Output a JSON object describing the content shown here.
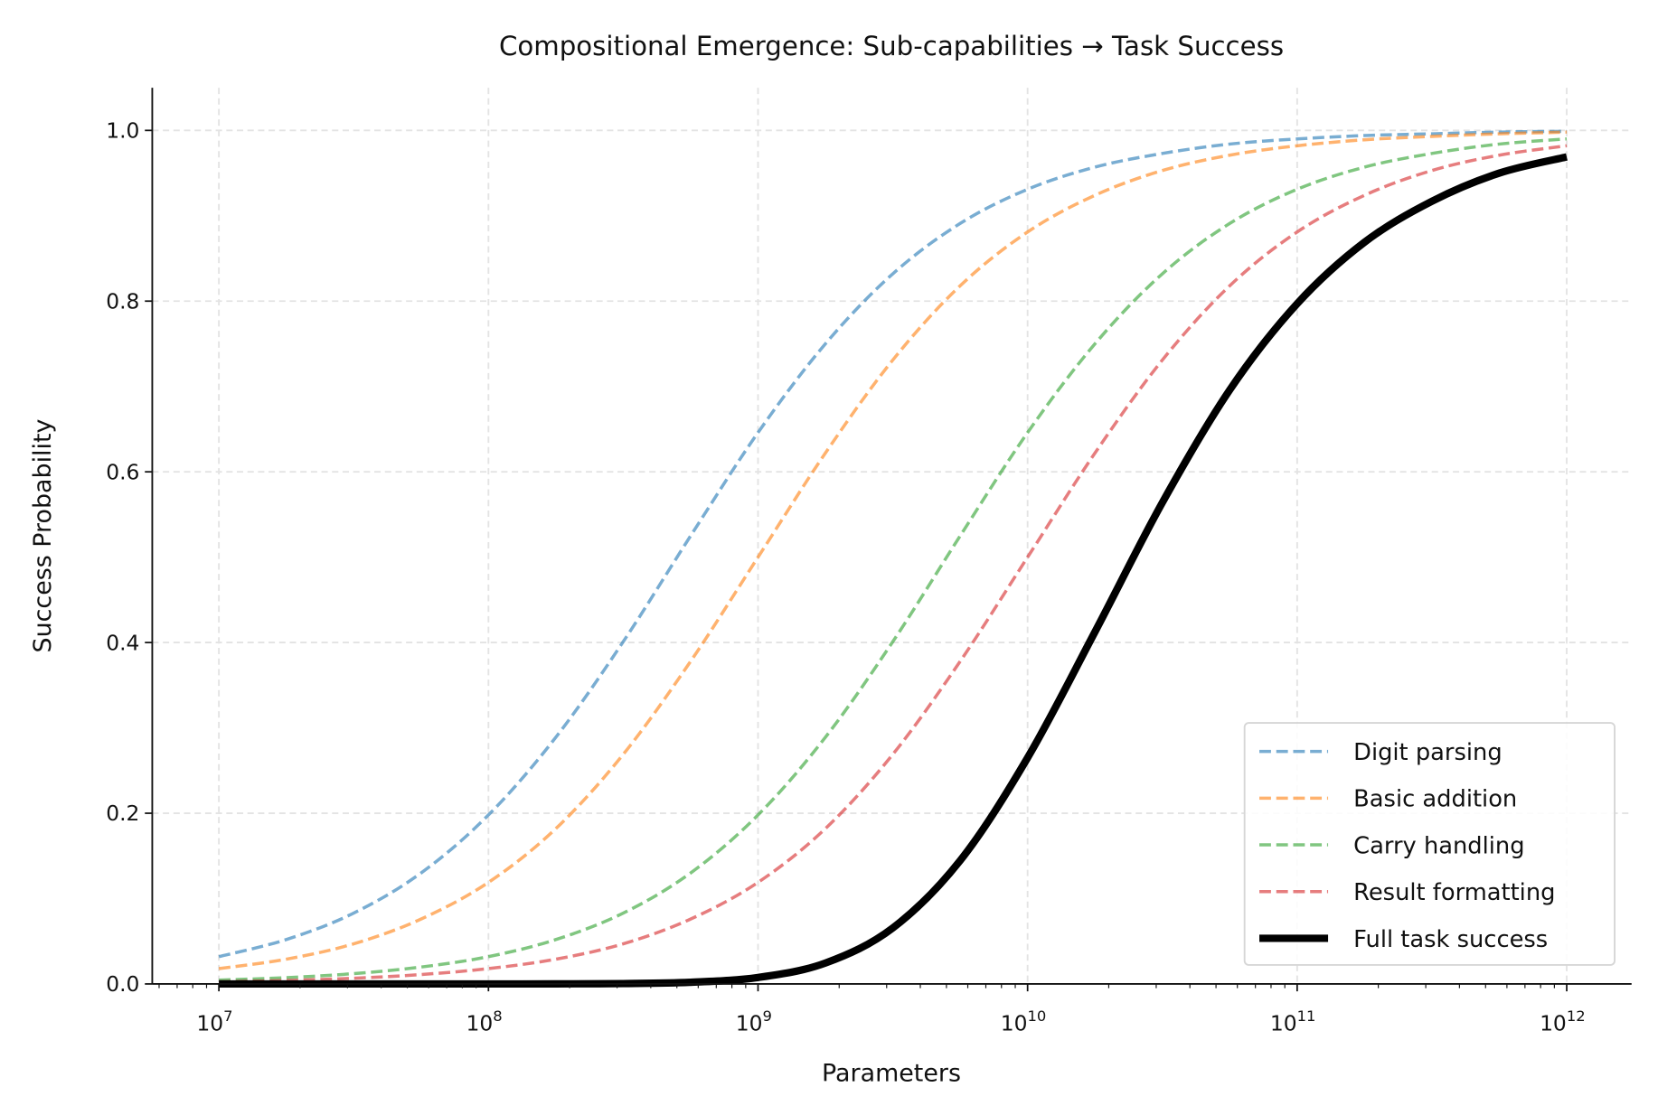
{
  "chart_data": {
    "type": "line",
    "title": "Compositional Emergence: Sub-capabilities → Task Success",
    "xlabel": "Parameters",
    "ylabel": "Success Probability",
    "xscale": "log",
    "xlim": [
      5660000.0,
      1740000000000.0
    ],
    "ylim": [
      0,
      1.05
    ],
    "grid": true,
    "legend_position": "lower-right",
    "x_ticks": [
      {
        "value": 10000000.0,
        "base": "10",
        "exp": "7"
      },
      {
        "value": 100000000.0,
        "base": "10",
        "exp": "8"
      },
      {
        "value": 1000000000.0,
        "base": "10",
        "exp": "9"
      },
      {
        "value": 10000000000.0,
        "base": "10",
        "exp": "10"
      },
      {
        "value": 100000000000.0,
        "base": "10",
        "exp": "11"
      },
      {
        "value": 1000000000000.0,
        "base": "10",
        "exp": "12"
      }
    ],
    "y_ticks": [
      "0.0",
      "0.2",
      "0.4",
      "0.6",
      "0.8",
      "1.0"
    ],
    "x": [
      10000000.0,
      17780000.0,
      31620000.0,
      56230000.0,
      100000000.0,
      177800000.0,
      316200000.0,
      562300000.0,
      1000000000.0,
      1778000000.0,
      3162000000.0,
      5623000000.0,
      10000000000.0,
      17780000000.0,
      31620000000.0,
      56230000000.0,
      100000000000.0,
      177800000000.0,
      316200000000.0,
      562300000000.0,
      1000000000000.0
    ],
    "series": [
      {
        "name": "Digit parsing",
        "color": "#1f77b4",
        "style": "dashed",
        "values": [
          0.032,
          0.052,
          0.083,
          0.13,
          0.198,
          0.289,
          0.401,
          0.525,
          0.646,
          0.75,
          0.832,
          0.891,
          0.931,
          0.957,
          0.973,
          0.984,
          0.99,
          0.994,
          0.996,
          0.998,
          0.999
        ]
      },
      {
        "name": "Basic addition",
        "color": "#ff7f0e",
        "style": "dashed",
        "values": [
          0.018,
          0.029,
          0.047,
          0.076,
          0.119,
          0.182,
          0.269,
          0.378,
          0.5,
          0.622,
          0.731,
          0.818,
          0.881,
          0.924,
          0.953,
          0.971,
          0.982,
          0.989,
          0.993,
          0.996,
          0.998
        ]
      },
      {
        "name": "Carry handling",
        "color": "#2ca02c",
        "style": "dashed",
        "values": [
          0.0045,
          0.0074,
          0.0121,
          0.0198,
          0.032,
          0.052,
          0.083,
          0.13,
          0.198,
          0.289,
          0.401,
          0.525,
          0.646,
          0.75,
          0.832,
          0.891,
          0.931,
          0.957,
          0.973,
          0.984,
          0.99
        ]
      },
      {
        "name": "Result formatting",
        "color": "#d62728",
        "style": "dashed",
        "values": [
          0.0025,
          0.0041,
          0.0067,
          0.011,
          0.018,
          0.029,
          0.047,
          0.076,
          0.119,
          0.182,
          0.269,
          0.378,
          0.5,
          0.622,
          0.731,
          0.818,
          0.881,
          0.924,
          0.953,
          0.971,
          0.982
        ]
      },
      {
        "name": "Full task success",
        "color": "#000000",
        "style": "solid",
        "values": [
          0.0,
          0.0,
          0.0,
          2e-06,
          1.4e-05,
          8e-05,
          0.00042,
          0.00196,
          0.0076,
          0.0245,
          0.0656,
          0.1446,
          0.265,
          0.4125,
          0.564,
          0.696,
          0.797,
          0.869,
          0.917,
          0.95,
          0.969
        ]
      }
    ]
  }
}
